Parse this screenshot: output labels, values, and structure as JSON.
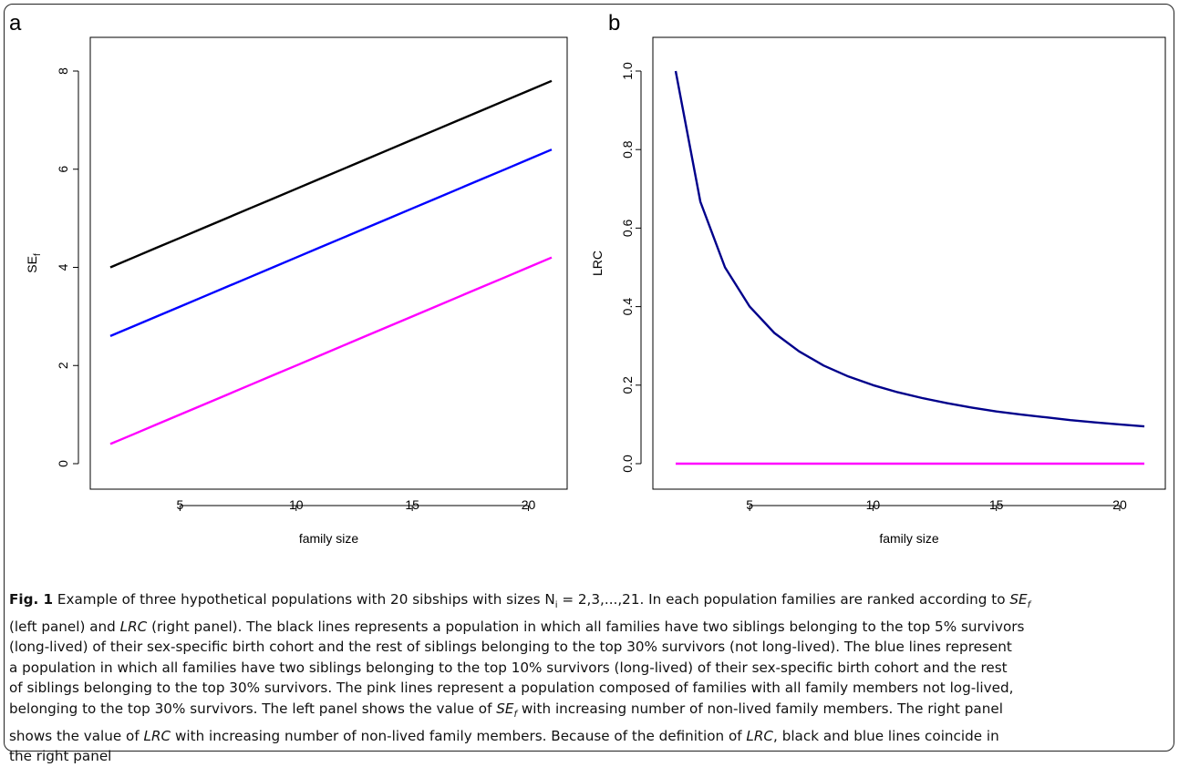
{
  "chart_data": [
    {
      "panel_label": "a",
      "type": "line",
      "xlabel": "family size",
      "ylabel": "SE",
      "ylabel_sub": "f",
      "xlim": [
        2,
        21
      ],
      "ylim": [
        0,
        8
      ],
      "xticks": [
        5,
        10,
        15,
        20
      ],
      "yticks": [
        0,
        2,
        4,
        6,
        8
      ],
      "x": [
        2,
        3,
        4,
        5,
        6,
        7,
        8,
        9,
        10,
        11,
        12,
        13,
        14,
        15,
        16,
        17,
        18,
        19,
        20,
        21
      ],
      "series": [
        {
          "color": "#000000",
          "values": [
            4.0,
            4.2,
            4.4,
            4.6,
            4.8,
            5.0,
            5.2,
            5.4,
            5.6,
            5.8,
            6.0,
            6.2,
            6.4,
            6.6,
            6.8,
            7.0,
            7.2,
            7.4,
            7.6,
            7.8
          ]
        },
        {
          "color": "#0000ff",
          "values": [
            2.6,
            2.8,
            3.0,
            3.2,
            3.4,
            3.6,
            3.8,
            4.0,
            4.2,
            4.4,
            4.6,
            4.8,
            5.0,
            5.2,
            5.4,
            5.6,
            5.8,
            6.0,
            6.2,
            6.4
          ]
        },
        {
          "color": "#ff00ff",
          "values": [
            0.4,
            0.6,
            0.8,
            1.0,
            1.2,
            1.4,
            1.6,
            1.8,
            2.0,
            2.2,
            2.4,
            2.6,
            2.8,
            3.0,
            3.2,
            3.4,
            3.6,
            3.8,
            4.0,
            4.2
          ]
        }
      ]
    },
    {
      "panel_label": "b",
      "type": "line",
      "xlabel": "family size",
      "ylabel": "LRC",
      "xlim": [
        2,
        21
      ],
      "ylim": [
        0,
        1
      ],
      "xticks": [
        5,
        10,
        15,
        20
      ],
      "yticks": [
        "0.0",
        "0.2",
        "0.4",
        "0.6",
        "0.8",
        "1.0"
      ],
      "x": [
        2,
        3,
        4,
        5,
        6,
        7,
        8,
        9,
        10,
        11,
        12,
        13,
        14,
        15,
        16,
        17,
        18,
        19,
        20,
        21
      ],
      "series": [
        {
          "color": "#00008b",
          "values": [
            1.0,
            0.667,
            0.5,
            0.4,
            0.333,
            0.286,
            0.25,
            0.222,
            0.2,
            0.182,
            0.167,
            0.154,
            0.143,
            0.133,
            0.125,
            0.118,
            0.111,
            0.105,
            0.1,
            0.095
          ]
        },
        {
          "color": "#ff00ff",
          "values": [
            0,
            0,
            0,
            0,
            0,
            0,
            0,
            0,
            0,
            0,
            0,
            0,
            0,
            0,
            0,
            0,
            0,
            0,
            0,
            0
          ]
        }
      ]
    }
  ],
  "caption": {
    "fig_label": "Fig. 1",
    "lines": [
      [
        {
          "t": " Example of three hypothetical populations with 20 sibships with sizes N",
          "s": ""
        },
        {
          "t": "i",
          "s": "sub"
        },
        {
          "t": " = 2,3,...,21. In each population families are ranked according to ",
          "s": ""
        },
        {
          "t": "SE",
          "s": "it"
        },
        {
          "t": "f",
          "s": "itsub"
        }
      ],
      [
        {
          "t": "(left panel) and ",
          "s": ""
        },
        {
          "t": "LRC",
          "s": "it"
        },
        {
          "t": " (right panel). The black lines represents a population in which all families have two siblings belonging to the top 5% survivors",
          "s": ""
        }
      ],
      [
        {
          "t": "(long-lived) of their sex-specific birth cohort and the rest of siblings belonging to the top 30% survivors (not long-lived). The blue lines represent",
          "s": ""
        }
      ],
      [
        {
          "t": "a population in which all families have two siblings belonging to the top 10% survivors (long-lived) of their sex-specific birth cohort and the rest",
          "s": ""
        }
      ],
      [
        {
          "t": "of siblings belonging to the top 30% survivors. The pink lines represent a population composed of families with all family members not log-lived,",
          "s": ""
        }
      ],
      [
        {
          "t": "belonging to the top 30% survivors. The left panel shows the value of ",
          "s": ""
        },
        {
          "t": "SE",
          "s": "it"
        },
        {
          "t": "f",
          "s": "itsub"
        },
        {
          "t": " with increasing number of non-lived family members. The right panel",
          "s": ""
        }
      ],
      [
        {
          "t": "shows the value of ",
          "s": ""
        },
        {
          "t": "LRC",
          "s": "it"
        },
        {
          "t": " with increasing number of non-lived family members. Because of the definition of ",
          "s": ""
        },
        {
          "t": "LRC",
          "s": "it"
        },
        {
          "t": ", black and blue lines coincide in",
          "s": ""
        }
      ],
      [
        {
          "t": "the right panel",
          "s": ""
        }
      ]
    ]
  }
}
